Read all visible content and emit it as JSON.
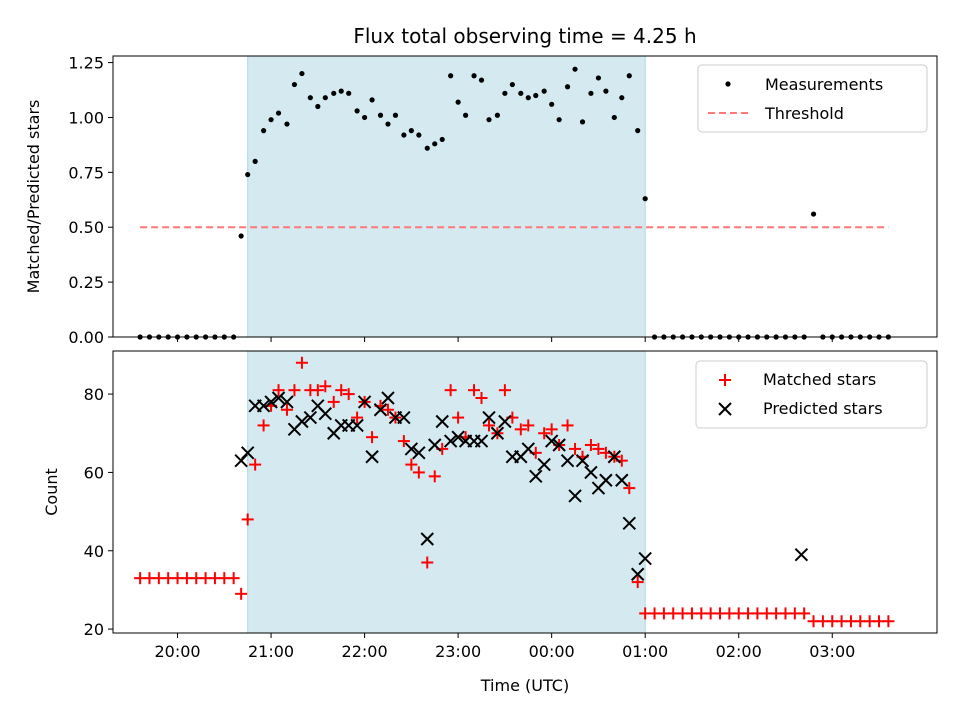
{
  "chart_data": [
    {
      "type": "scatter",
      "title": "Flux total observing time = 4.25 h",
      "xlabel": "",
      "ylabel": "Matched/Predicted stars",
      "xlim_hours": [
        19.31,
        28.12
      ],
      "ylim": [
        0,
        1.28
      ],
      "yticks": [
        0.0,
        0.25,
        0.5,
        0.75,
        1.0,
        1.25
      ],
      "yticklabels": [
        "0.00",
        "0.25",
        "0.50",
        "0.75",
        "1.00",
        "1.25"
      ],
      "shaded_interval_hours": [
        20.75,
        25.0
      ],
      "shade_color": "#d4eaf0",
      "legend_position": "top-right",
      "series": [
        {
          "name": "Measurements",
          "kind": "dots",
          "color": "#000000",
          "x": [
            19.6,
            19.7,
            19.8,
            19.9,
            20.0,
            20.1,
            20.2,
            20.3,
            20.4,
            20.5,
            20.6,
            20.68,
            20.75,
            20.83,
            20.92,
            21.0,
            21.08,
            21.17,
            21.25,
            21.33,
            21.42,
            21.5,
            21.58,
            21.67,
            21.75,
            21.83,
            21.92,
            22.0,
            22.08,
            22.17,
            22.25,
            22.33,
            22.42,
            22.5,
            22.58,
            22.67,
            22.75,
            22.83,
            22.92,
            23.0,
            23.08,
            23.17,
            23.25,
            23.33,
            23.42,
            23.5,
            23.58,
            23.67,
            23.75,
            23.83,
            23.92,
            24.0,
            24.08,
            24.17,
            24.25,
            24.33,
            24.42,
            24.5,
            24.58,
            24.67,
            24.75,
            24.83,
            24.92,
            25.0,
            25.1,
            25.2,
            25.3,
            25.4,
            25.5,
            25.6,
            25.7,
            25.8,
            25.9,
            26.0,
            26.1,
            26.2,
            26.3,
            26.4,
            26.5,
            26.6,
            26.7,
            26.8,
            26.9,
            27.0,
            27.1,
            27.2,
            27.3,
            27.4,
            27.5,
            27.6
          ],
          "y": [
            0,
            0,
            0,
            0,
            0,
            0,
            0,
            0,
            0,
            0,
            0,
            0.46,
            0.74,
            0.8,
            0.94,
            0.99,
            1.02,
            0.97,
            1.15,
            1.2,
            1.09,
            1.05,
            1.09,
            1.11,
            1.12,
            1.11,
            1.03,
            1.0,
            1.08,
            1.01,
            0.97,
            1.01,
            0.92,
            0.94,
            0.92,
            0.86,
            0.88,
            0.9,
            1.19,
            1.07,
            1.01,
            1.19,
            1.17,
            0.99,
            1.01,
            1.11,
            1.15,
            1.11,
            1.09,
            1.1,
            1.12,
            1.06,
            0.99,
            1.14,
            1.22,
            0.98,
            1.11,
            1.18,
            1.12,
            1.0,
            1.09,
            1.19,
            0.94,
            0.63,
            0,
            0,
            0,
            0,
            0,
            0,
            0,
            0,
            0,
            0,
            0,
            0,
            0,
            0,
            0,
            0,
            0,
            0.56,
            0,
            0,
            0,
            0,
            0,
            0,
            0,
            0
          ]
        },
        {
          "name": "Threshold",
          "kind": "dashed-line",
          "color": "#ff7777",
          "x": [
            19.6,
            27.6
          ],
          "y": [
            0.5,
            0.5
          ]
        }
      ]
    },
    {
      "type": "scatter",
      "title": "",
      "xlabel": "Time (UTC)",
      "ylabel": "Count",
      "xlim_hours": [
        19.31,
        28.12
      ],
      "ylim": [
        19,
        91
      ],
      "yticks": [
        20,
        40,
        60,
        80
      ],
      "yticklabels": [
        "20",
        "40",
        "60",
        "80"
      ],
      "xticks_hours": [
        20,
        21,
        22,
        23,
        24,
        25,
        26,
        27
      ],
      "xticklabels": [
        "20:00",
        "21:00",
        "22:00",
        "23:00",
        "00:00",
        "01:00",
        "02:00",
        "03:00"
      ],
      "shaded_interval_hours": [
        20.75,
        25.0
      ],
      "shade_color": "#d4eaf0",
      "legend_position": "top-right",
      "series": [
        {
          "name": "Matched stars",
          "kind": "plus",
          "color": "#ff0000",
          "x": [
            19.6,
            19.7,
            19.8,
            19.9,
            20.0,
            20.1,
            20.2,
            20.3,
            20.4,
            20.5,
            20.6,
            20.68,
            20.75,
            20.83,
            20.92,
            21.0,
            21.08,
            21.17,
            21.25,
            21.33,
            21.42,
            21.5,
            21.58,
            21.67,
            21.75,
            21.83,
            21.92,
            22.0,
            22.08,
            22.17,
            22.25,
            22.33,
            22.42,
            22.5,
            22.58,
            22.67,
            22.75,
            22.83,
            22.92,
            23.0,
            23.08,
            23.17,
            23.25,
            23.33,
            23.42,
            23.5,
            23.58,
            23.67,
            23.75,
            23.83,
            23.92,
            24.0,
            24.08,
            24.17,
            24.25,
            24.33,
            24.42,
            24.5,
            24.58,
            24.67,
            24.75,
            24.83,
            24.92,
            25.0,
            25.1,
            25.2,
            25.3,
            25.4,
            25.5,
            25.6,
            25.7,
            25.8,
            25.9,
            26.0,
            26.1,
            26.2,
            26.3,
            26.4,
            26.5,
            26.6,
            26.7,
            26.8,
            26.9,
            27.0,
            27.1,
            27.2,
            27.3,
            27.4,
            27.5,
            27.6
          ],
          "y": [
            33,
            33,
            33,
            33,
            33,
            33,
            33,
            33,
            33,
            33,
            33,
            29,
            48,
            62,
            72,
            77,
            81,
            76,
            81,
            88,
            81,
            81,
            82,
            78,
            81,
            80,
            74,
            78,
            69,
            77,
            76,
            74,
            68,
            62,
            60,
            37,
            59,
            66,
            81,
            74,
            69,
            81,
            79,
            72,
            70,
            81,
            74,
            71,
            72,
            65,
            70,
            71,
            67,
            72,
            66,
            64,
            67,
            66,
            65,
            64,
            63,
            56,
            32,
            24,
            24,
            24,
            24,
            24,
            24,
            24,
            24,
            24,
            24,
            24,
            24,
            24,
            24,
            24,
            24,
            24,
            24,
            22,
            22,
            22,
            22,
            22,
            22,
            22,
            22,
            22
          ]
        },
        {
          "name": "Predicted stars",
          "kind": "cross",
          "color": "#000000",
          "x": [
            20.68,
            20.75,
            20.83,
            20.92,
            21.0,
            21.08,
            21.17,
            21.25,
            21.33,
            21.42,
            21.5,
            21.58,
            21.67,
            21.75,
            21.83,
            21.92,
            22.0,
            22.08,
            22.17,
            22.25,
            22.33,
            22.42,
            22.5,
            22.58,
            22.67,
            22.75,
            22.83,
            22.92,
            23.0,
            23.08,
            23.17,
            23.25,
            23.33,
            23.42,
            23.5,
            23.58,
            23.67,
            23.75,
            23.83,
            23.92,
            24.0,
            24.08,
            24.17,
            24.25,
            24.33,
            24.42,
            24.5,
            24.58,
            24.67,
            24.75,
            24.83,
            24.92,
            25.0,
            26.67
          ],
          "y": [
            63,
            65,
            77,
            77,
            78,
            79,
            78,
            71,
            73,
            74,
            77,
            75,
            70,
            72,
            72,
            72,
            78,
            64,
            76,
            79,
            74,
            74,
            66,
            65,
            43,
            67,
            73,
            68,
            69,
            68,
            68,
            68,
            74,
            70,
            73,
            64,
            64,
            66,
            59,
            62,
            68,
            67,
            63,
            54,
            63,
            60,
            56,
            58,
            64,
            58,
            47,
            34,
            38,
            39
          ]
        }
      ]
    }
  ]
}
